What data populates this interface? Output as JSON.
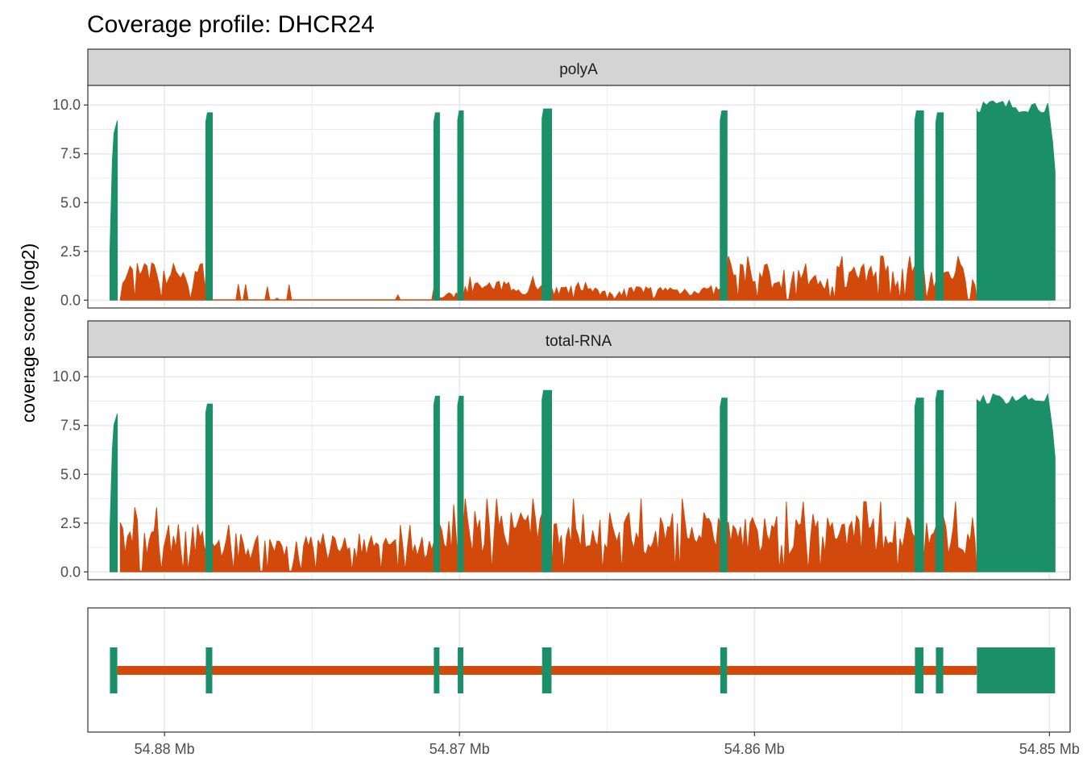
{
  "title": "Coverage profile: DHCR24",
  "y_axis_title": "coverage score (log2)",
  "colors": {
    "exon": "#1b9068",
    "intron": "#d14a0c",
    "strip_bg": "#d4d4d4",
    "grid": "#ebebeb"
  },
  "chart_data": [
    {
      "type": "area",
      "facet": "polyA",
      "xlabel": "",
      "ylabel": "coverage score (log2)",
      "xlim": [
        54.8826,
        54.8493
      ],
      "ylim": [
        -0.4,
        11.0
      ],
      "grid": true,
      "x_ticks": [
        54.88,
        54.87,
        54.86,
        54.85
      ],
      "y_ticks": [
        0.0,
        2.5,
        5.0,
        7.5,
        10.0
      ],
      "y_tick_labels": [
        "0.0",
        "2.5",
        "5.0",
        "7.5",
        "10.0"
      ],
      "exons": [
        {
          "start": 54.88185,
          "end": 54.8816,
          "level": 9.2,
          "ramp": true
        },
        {
          "start": 54.8786,
          "end": 54.87838,
          "level": 9.6
        },
        {
          "start": 54.87087,
          "end": 54.87068,
          "level": 9.6
        },
        {
          "start": 54.87006,
          "end": 54.86987,
          "level": 9.7
        },
        {
          "start": 54.8672,
          "end": 54.86688,
          "level": 9.8
        },
        {
          "start": 54.86116,
          "end": 54.86093,
          "level": 9.7
        },
        {
          "start": 54.85456,
          "end": 54.85427,
          "level": 9.7
        },
        {
          "start": 54.85385,
          "end": 54.8536,
          "level": 9.6
        },
        {
          "start": 54.85246,
          "end": 54.84981,
          "level": 10.1,
          "block": true
        }
      ],
      "intron_segments": [
        {
          "start": 54.8815,
          "end": 54.87848,
          "level": 1.6
        },
        {
          "start": 54.87848,
          "end": 54.87077,
          "level": 0.05,
          "sparse": true
        },
        {
          "start": 54.87077,
          "end": 54.86997,
          "level": 0.3
        },
        {
          "start": 54.86997,
          "end": 54.86704,
          "level": 0.8
        },
        {
          "start": 54.86704,
          "end": 54.86105,
          "level": 0.6
        },
        {
          "start": 54.86105,
          "end": 54.85246,
          "level": 1.5
        }
      ]
    },
    {
      "type": "area",
      "facet": "total-RNA",
      "xlabel": "",
      "ylabel": "coverage score (log2)",
      "xlim": [
        54.8826,
        54.8493
      ],
      "ylim": [
        -0.4,
        11.0
      ],
      "grid": true,
      "x_ticks": [
        54.88,
        54.87,
        54.86,
        54.85
      ],
      "y_ticks": [
        0.0,
        2.5,
        5.0,
        7.5,
        10.0
      ],
      "y_tick_labels": [
        "0.0",
        "2.5",
        "5.0",
        "7.5",
        "10.0"
      ],
      "exons": [
        {
          "start": 54.88185,
          "end": 54.8816,
          "level": 8.1,
          "ramp": true
        },
        {
          "start": 54.8786,
          "end": 54.87838,
          "level": 8.6
        },
        {
          "start": 54.87087,
          "end": 54.87068,
          "level": 9.0
        },
        {
          "start": 54.87006,
          "end": 54.86987,
          "level": 9.0
        },
        {
          "start": 54.8672,
          "end": 54.86688,
          "level": 9.3
        },
        {
          "start": 54.86116,
          "end": 54.86093,
          "level": 8.9
        },
        {
          "start": 54.85456,
          "end": 54.85427,
          "level": 8.9
        },
        {
          "start": 54.85385,
          "end": 54.8536,
          "level": 9.3
        },
        {
          "start": 54.85246,
          "end": 54.84981,
          "level": 9.0,
          "block": true
        }
      ],
      "intron_segments": [
        {
          "start": 54.8815,
          "end": 54.87848,
          "level": 2.2
        },
        {
          "start": 54.87848,
          "end": 54.87077,
          "level": 1.6
        },
        {
          "start": 54.87077,
          "end": 54.86997,
          "level": 2.3
        },
        {
          "start": 54.86997,
          "end": 54.86704,
          "level": 2.5
        },
        {
          "start": 54.86704,
          "end": 54.86105,
          "level": 2.5
        },
        {
          "start": 54.86105,
          "end": 54.85246,
          "level": 2.4
        }
      ]
    }
  ],
  "gene_model": {
    "x_ticks": [
      54.88,
      54.87,
      54.86,
      54.85
    ],
    "x_tick_labels": [
      "54.88 Mb",
      "54.87 Mb",
      "54.86 Mb",
      "54.85 Mb"
    ],
    "intron": {
      "start": 54.8816,
      "end": 54.85246
    },
    "exons": [
      {
        "start": 54.88185,
        "end": 54.8816
      },
      {
        "start": 54.8786,
        "end": 54.87838
      },
      {
        "start": 54.87087,
        "end": 54.87068
      },
      {
        "start": 54.87006,
        "end": 54.86987
      },
      {
        "start": 54.8672,
        "end": 54.86688
      },
      {
        "start": 54.86116,
        "end": 54.86093
      },
      {
        "start": 54.85456,
        "end": 54.85427
      },
      {
        "start": 54.85385,
        "end": 54.8536
      },
      {
        "start": 54.85246,
        "end": 54.84981
      }
    ]
  }
}
